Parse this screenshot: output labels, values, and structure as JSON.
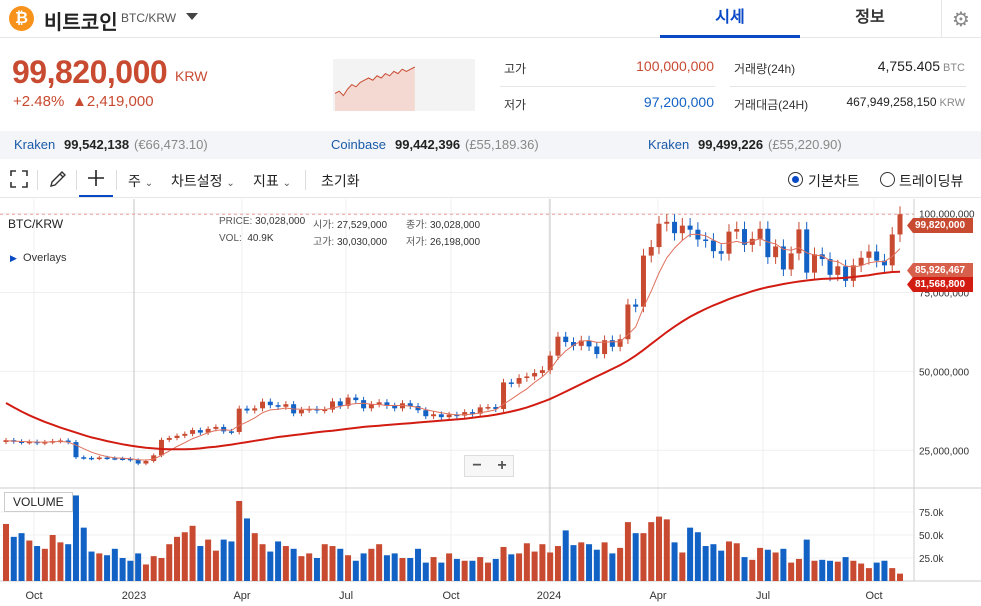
{
  "header": {
    "coin_symbol_glyph": "₿",
    "coin_name": "비트코인",
    "pair": "BTC/KRW",
    "tabs": [
      {
        "label": "시세",
        "active": true
      },
      {
        "label": "정보",
        "active": false
      }
    ],
    "settings_icon": "gear-icon"
  },
  "ticker": {
    "price": "99,820,000",
    "unit": "KRW",
    "change_rate": "+2.48%",
    "change_amount": "▲2,419,000",
    "color_up": "#c84a31",
    "color_down": "#1261c4"
  },
  "stats": {
    "high_label": "고가",
    "high": "100,000,000",
    "low_label": "저가",
    "low": "97,200,000",
    "volume_label": "거래량(24h)",
    "volume": "4,755.405",
    "volume_unit": "BTC",
    "amount_label": "거래대금(24H)",
    "amount": "467,949,258,150",
    "amount_unit": "KRW"
  },
  "exchanges": [
    {
      "name": "Kraken",
      "price": "99,542,138",
      "fx": "(€66,473.10)"
    },
    {
      "name": "Coinbase",
      "price": "99,442,396",
      "fx": "(£55,189.36)"
    },
    {
      "name": "Kraken",
      "price": "99,499,226",
      "fx": "(£55,220.90)"
    }
  ],
  "toolbar": {
    "period": "주",
    "chart_settings": "차트설정",
    "indicators": "지표",
    "reset": "초기화",
    "radio_basic": "기본차트",
    "radio_tv": "트레이딩뷰"
  },
  "chart": {
    "pair": "BTC/KRW",
    "price_label": "PRICE:",
    "price": "30,028,000",
    "open_label": "시가:",
    "open": "27,529,000",
    "close_label": "종가:",
    "close": "30,028,000",
    "vol_label": "VOL:",
    "vol": "40.9K",
    "high_label": "고가:",
    "high": "30,030,000",
    "low_label": "저가:",
    "low": "26,198,000",
    "overlays": "Overlays",
    "volume_tag": "VOLUME",
    "zoom_out": "−",
    "zoom_in": "+",
    "tags": [
      "99,820,000",
      "85,926,467",
      "81,568,800"
    ]
  },
  "chart_data": {
    "type": "candlestick",
    "y_ticks": [
      "100,000,000",
      "75,000,000",
      "50,000,000",
      "25,000,000"
    ],
    "y_tick_values": [
      100000000,
      75000000,
      50000000,
      25000000
    ],
    "x_ticks": [
      "Oct",
      "2023",
      "Apr",
      "Jul",
      "Oct",
      "2024",
      "Apr",
      "Jul",
      "Oct"
    ],
    "vol_ticks": [
      "75.0k",
      "50.0k",
      "25.0k"
    ],
    "vol_tick_values": [
      75000,
      50000,
      25000
    ],
    "ylim": [
      14000000,
      104000000
    ],
    "vol_max": 100000,
    "close_weekly": [
      28.2,
      27.8,
      27.5,
      27.7,
      27.3,
      27.6,
      27.9,
      28.1,
      27.6,
      22.8,
      22.6,
      22.4,
      22.7,
      22.5,
      22.4,
      22.3,
      21.9,
      20.8,
      21.6,
      23.4,
      28.3,
      28.9,
      29.6,
      30.2,
      31.4,
      30.6,
      31.8,
      32.4,
      31.0,
      30.8,
      38.2,
      37.6,
      38.3,
      40.4,
      39.3,
      38.8,
      39.6,
      36.7,
      37.8,
      38.1,
      37.6,
      37.9,
      40.5,
      39.1,
      41.7,
      40.9,
      38.3,
      39.6,
      40.2,
      39.1,
      38.3,
      39.9,
      39.0,
      37.7,
      35.8,
      36.4,
      35.5,
      36.3,
      36.0,
      37.1,
      36.6,
      38.6,
      38.7,
      38.1,
      46.5,
      46.1,
      47.9,
      48.4,
      49.5,
      50.4,
      55.0,
      61.0,
      59.3,
      58.1,
      59.8,
      57.9,
      55.5,
      59.9,
      57.8,
      60.2,
      71.2,
      70.5,
      86.7,
      89.4,
      96.8,
      97.4,
      93.8,
      96.2,
      94.9,
      91.8,
      91.5,
      88.1,
      87.3,
      94.3,
      95.1,
      90.1,
      92.0,
      95.2,
      86.2,
      89.6,
      82.3,
      87.4,
      95.0,
      81.3,
      87.1,
      85.6,
      80.6,
      83.3,
      78.7,
      83.6,
      86.0,
      88.0,
      85.1,
      83.6,
      93.4,
      99.8
    ],
    "ma_short": [
      28.0,
      27.9,
      27.8,
      27.7,
      27.6,
      27.6,
      27.7,
      27.8,
      27.6,
      26.6,
      25.5,
      24.4,
      23.6,
      23.0,
      22.6,
      22.5,
      22.3,
      22.0,
      21.9,
      22.2,
      23.4,
      24.8,
      26.2,
      27.4,
      28.7,
      29.6,
      30.6,
      31.3,
      31.5,
      31.3,
      32.9,
      34.0,
      35.3,
      36.9,
      37.8,
      38.0,
      38.4,
      38.1,
      38.0,
      38.0,
      38.0,
      37.9,
      38.4,
      38.9,
      39.5,
      39.8,
      39.9,
      39.6,
      39.5,
      39.2,
      39.2,
      39.2,
      39.0,
      38.6,
      37.9,
      37.4,
      36.9,
      36.5,
      36.2,
      36.3,
      36.4,
      36.9,
      37.3,
      37.9,
      39.6,
      41.2,
      42.9,
      44.5,
      46.5,
      48.3,
      50.6,
      54.0,
      56.5,
      58.3,
      59.6,
      59.8,
      59.2,
      59.3,
      59.4,
      59.4,
      61.6,
      64.1,
      70.3,
      75.4,
      81.2,
      86.0,
      89.1,
      91.5,
      93.4,
      93.4,
      93.0,
      91.6,
      90.5,
      90.7,
      91.2,
      90.6,
      91.3,
      92.1,
      91.0,
      90.4,
      88.7,
      88.4,
      89.2,
      87.6,
      86.9,
      86.6,
      85.1,
      84.8,
      83.4,
      83.1,
      83.5,
      84.4,
      84.8,
      84.8,
      86.4,
      88.9
    ],
    "ma_long": [
      40.0,
      38.6,
      37.3,
      36.1,
      35.0,
      34.0,
      33.1,
      32.2,
      31.4,
      30.6,
      29.8,
      29.1,
      28.5,
      27.9,
      27.4,
      26.9,
      26.5,
      26.1,
      25.8,
      25.6,
      25.4,
      25.3,
      25.3,
      25.3,
      25.4,
      25.6,
      25.9,
      26.1,
      26.5,
      26.8,
      27.2,
      27.6,
      28.0,
      28.4,
      28.8,
      29.2,
      29.5,
      29.8,
      30.1,
      30.4,
      30.7,
      31.0,
      31.2,
      31.5,
      31.8,
      32.1,
      32.4,
      32.6,
      32.8,
      33.0,
      33.2,
      33.4,
      33.6,
      33.8,
      34.0,
      34.2,
      34.4,
      34.6,
      34.8,
      35.0,
      35.3,
      35.6,
      35.9,
      36.3,
      36.8,
      37.3,
      37.9,
      38.6,
      39.4,
      40.3,
      41.3,
      42.4,
      43.6,
      44.8,
      46.0,
      47.2,
      48.4,
      49.6,
      50.8,
      52.0,
      53.4,
      55.0,
      56.8,
      58.7,
      60.6,
      62.5,
      64.2,
      65.8,
      67.3,
      68.6,
      69.8,
      70.9,
      71.9,
      72.9,
      73.8,
      74.6,
      75.4,
      76.1,
      76.7,
      77.2,
      77.7,
      78.1,
      78.5,
      78.8,
      79.1,
      79.3,
      79.4,
      79.5,
      79.7,
      79.9,
      80.2,
      80.5,
      80.9,
      81.2,
      81.5,
      81.6
    ],
    "volume_k": [
      62,
      48,
      52,
      44,
      38,
      35,
      50,
      42,
      40,
      93,
      58,
      32,
      30,
      28,
      35,
      25,
      22,
      30,
      18,
      27,
      25,
      40,
      48,
      53,
      60,
      38,
      45,
      33,
      45,
      43,
      87,
      68,
      52,
      40,
      32,
      43,
      38,
      35,
      27,
      30,
      25,
      40,
      38,
      35,
      28,
      22,
      30,
      35,
      40,
      28,
      30,
      25,
      25,
      35,
      20,
      26,
      20,
      30,
      24,
      22,
      22,
      26,
      20,
      24,
      37,
      29,
      30,
      41,
      32,
      40,
      31,
      38,
      55,
      39,
      42,
      40,
      34,
      42,
      30,
      36,
      64,
      52,
      52,
      64,
      70,
      67,
      42,
      31,
      58,
      53,
      38,
      40,
      33,
      43,
      41,
      26,
      23,
      36,
      34,
      31,
      35,
      20,
      24,
      45,
      22,
      23,
      22,
      21,
      26,
      22,
      19,
      14,
      20,
      22,
      14,
      8
    ],
    "price_units": "millions KRW, closes estimated from chart"
  }
}
